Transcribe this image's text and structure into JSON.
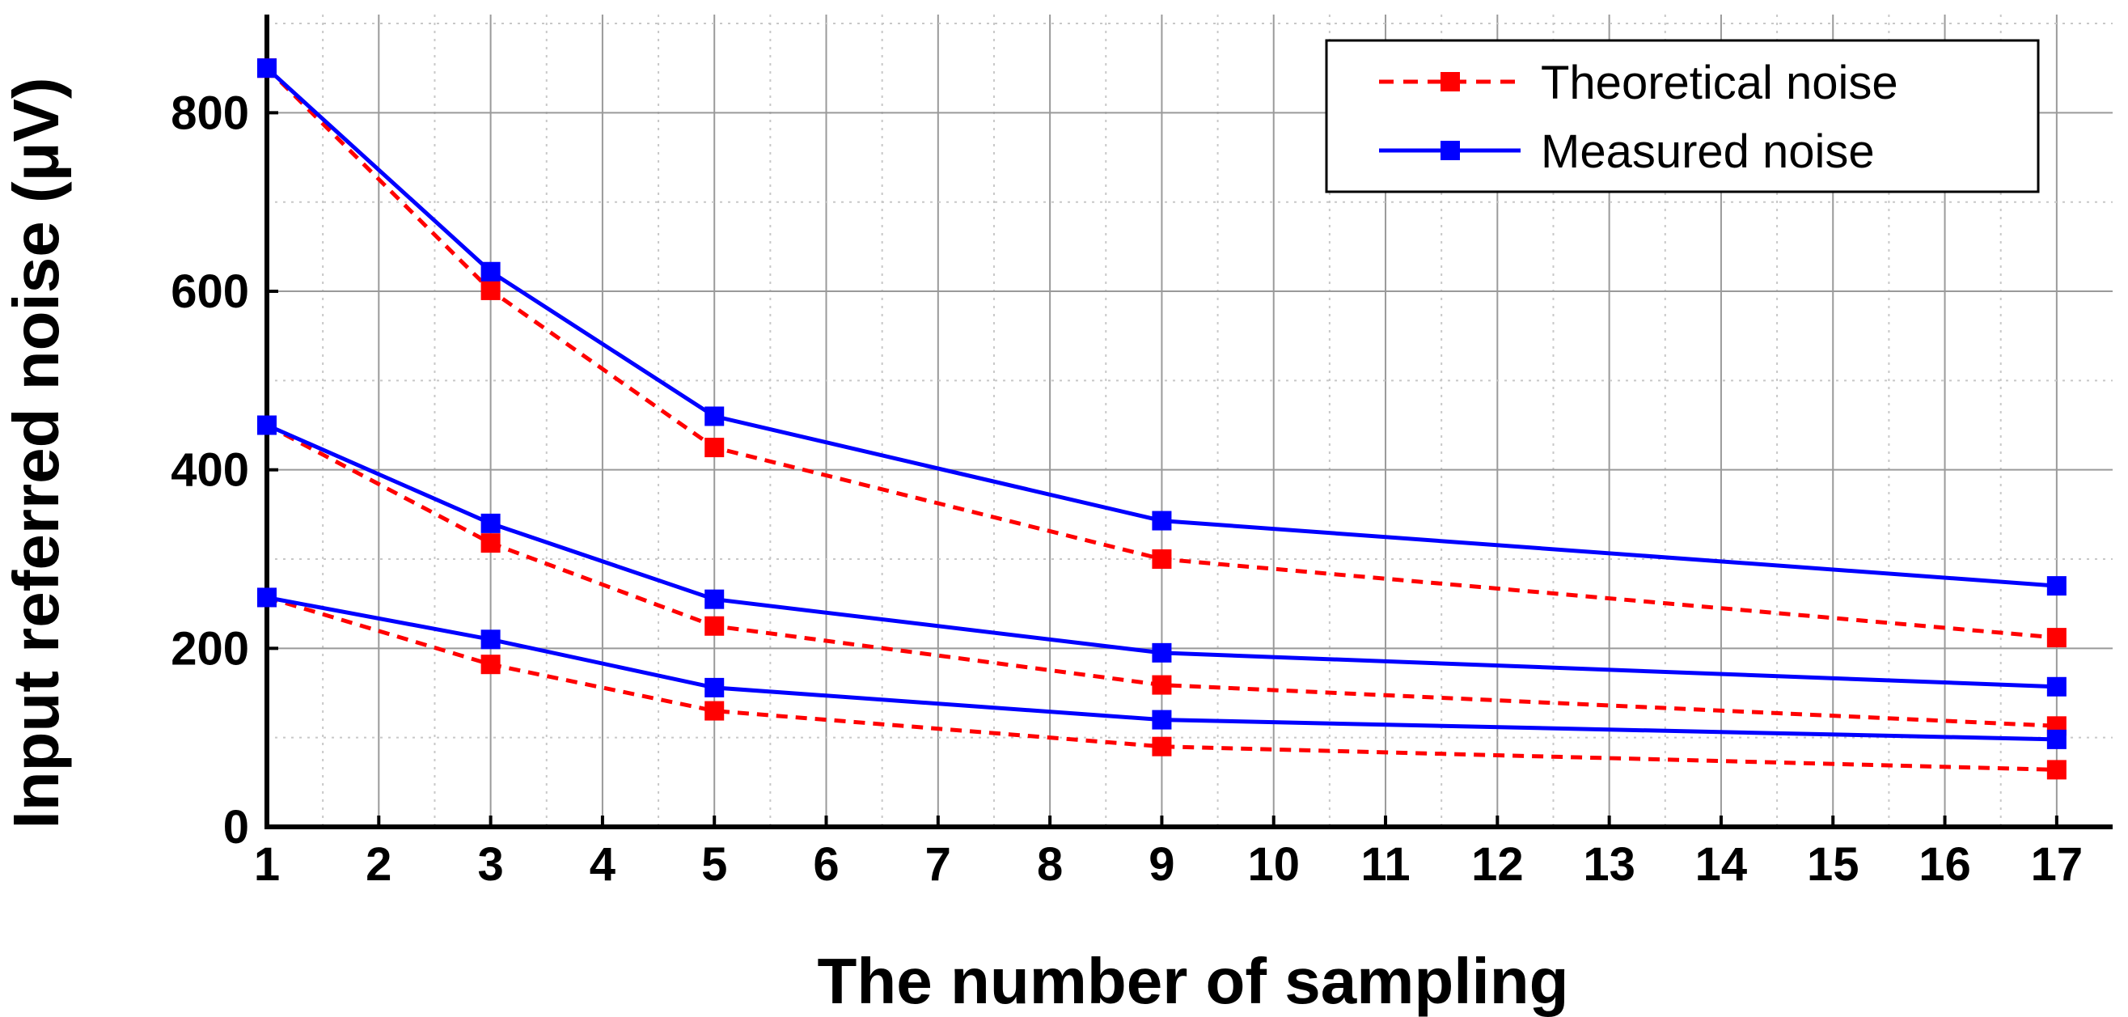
{
  "chart_data": {
    "type": "line",
    "title": "",
    "xlabel": "The number of sampling",
    "ylabel": "Input referred noise (μV)",
    "xlim": [
      1,
      17.5
    ],
    "ylim": [
      0,
      910
    ],
    "xticks": [
      1,
      2,
      3,
      4,
      5,
      6,
      7,
      8,
      9,
      10,
      11,
      12,
      13,
      14,
      15,
      16,
      17
    ],
    "yticks": [
      0,
      200,
      400,
      600,
      800
    ],
    "grid": true,
    "legend_position": "top-right",
    "legend": [
      "Theoretical noise",
      "Measured noise"
    ],
    "colors": {
      "theoretical": "#ff0000",
      "measured": "#0000ff",
      "grid_major": "#9a9a9a",
      "grid_minor": "#c8c8c8",
      "axis": "#000000"
    },
    "x": [
      1,
      3,
      5,
      9,
      17
    ],
    "series": [
      {
        "name": "Theoretical noise",
        "group": 1,
        "style": "dashed",
        "values": [
          850,
          601,
          425,
          300,
          212
        ]
      },
      {
        "name": "Measured noise",
        "group": 1,
        "style": "solid",
        "values": [
          850,
          622,
          460,
          343,
          270
        ]
      },
      {
        "name": "Theoretical noise",
        "group": 2,
        "style": "dashed",
        "values": [
          450,
          318,
          225,
          159,
          113
        ]
      },
      {
        "name": "Measured noise",
        "group": 2,
        "style": "solid",
        "values": [
          450,
          340,
          255,
          195,
          157
        ]
      },
      {
        "name": "Theoretical noise",
        "group": 3,
        "style": "dashed",
        "values": [
          257,
          182,
          130,
          90,
          64
        ]
      },
      {
        "name": "Measured noise",
        "group": 3,
        "style": "solid",
        "values": [
          257,
          210,
          156,
          120,
          98
        ]
      }
    ]
  }
}
